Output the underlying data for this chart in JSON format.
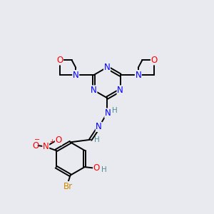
{
  "bg_color": "#e8eaf0",
  "bond_color": "#000000",
  "bond_width": 1.4,
  "atom_colors": {
    "N": "#0000ff",
    "O": "#ff0000",
    "Br": "#cc8800",
    "H": "#4a9090"
  },
  "font_size": 8.5
}
